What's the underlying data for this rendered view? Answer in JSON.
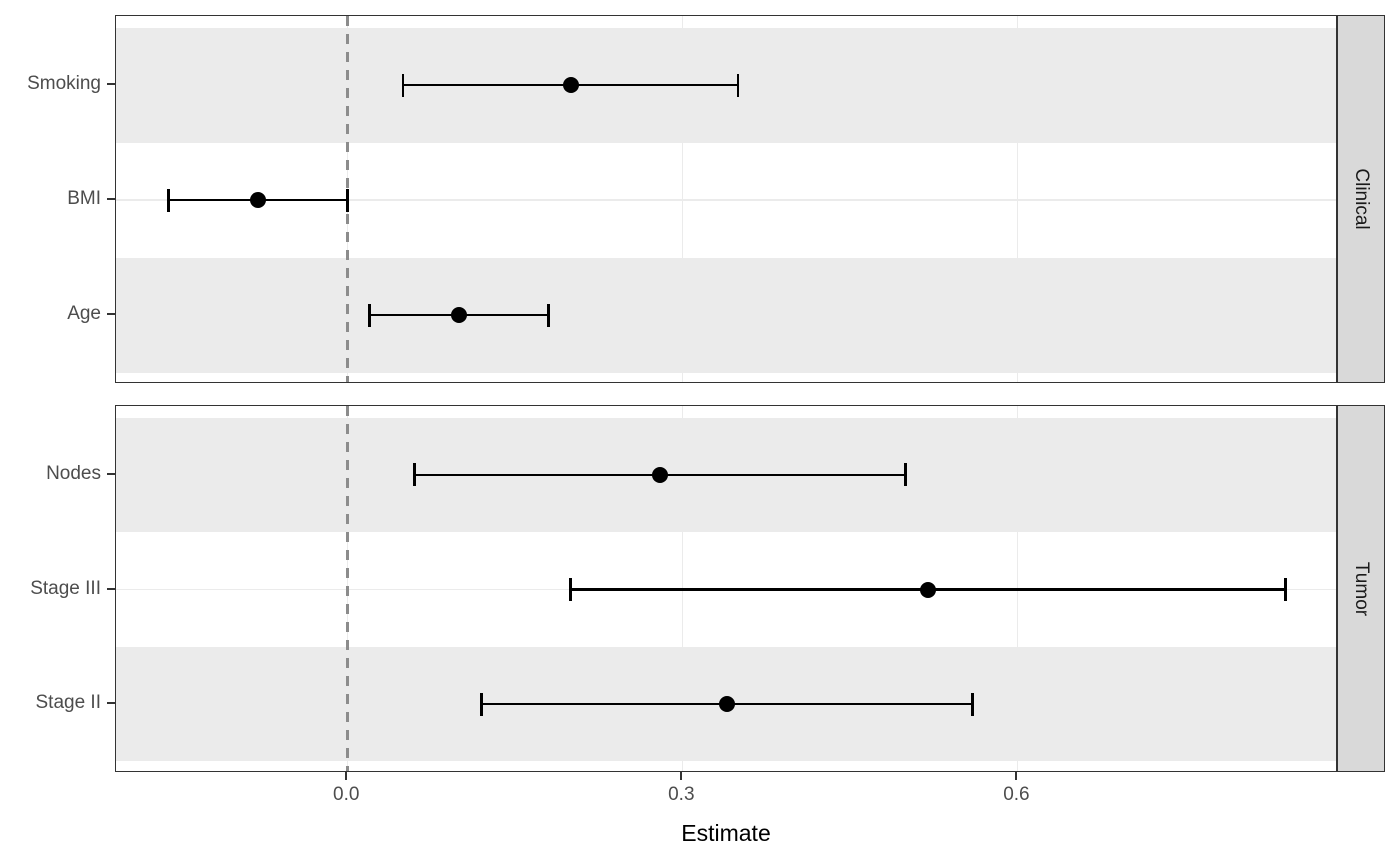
{
  "chart_data": {
    "type": "scatter",
    "subtype": "forest-plot-with-error-bars",
    "title": "",
    "xlabel": "Estimate",
    "ylabel": "",
    "xlim": [
      -0.207,
      0.887
    ],
    "xticks": [
      0.0,
      0.3,
      0.6
    ],
    "xtick_labels": [
      "0.0",
      "0.3",
      "0.6"
    ],
    "reference_line_x": 0,
    "grid": "major-light",
    "legend": "none",
    "facets": [
      {
        "label": "Clinical",
        "rows": [
          {
            "label": "Smoking",
            "estimate": 0.2,
            "ci_low": 0.05,
            "ci_high": 0.35
          },
          {
            "label": "BMI",
            "estimate": -0.08,
            "ci_low": -0.16,
            "ci_high": 0.0
          },
          {
            "label": "Age",
            "estimate": 0.1,
            "ci_low": 0.02,
            "ci_high": 0.18
          }
        ]
      },
      {
        "label": "Tumor",
        "rows": [
          {
            "label": "Nodes",
            "estimate": 0.28,
            "ci_low": 0.06,
            "ci_high": 0.5
          },
          {
            "label": "Stage III",
            "estimate": 0.52,
            "ci_low": 0.2,
            "ci_high": 0.84
          },
          {
            "label": "Stage II",
            "estimate": 0.34,
            "ci_low": 0.12,
            "ci_high": 0.56
          }
        ]
      }
    ],
    "colors": {
      "point": "#000000",
      "error_bar": "#000000",
      "reference_line": "#8c8c8c",
      "row_stripe": "#ebebeb",
      "gridline": "#ebebeb",
      "panel_border": "#333333",
      "strip_background": "#d9d9d9",
      "axis_text": "#4d4d4d",
      "axis_title": "#000000",
      "panel_background": "#ffffff"
    }
  }
}
